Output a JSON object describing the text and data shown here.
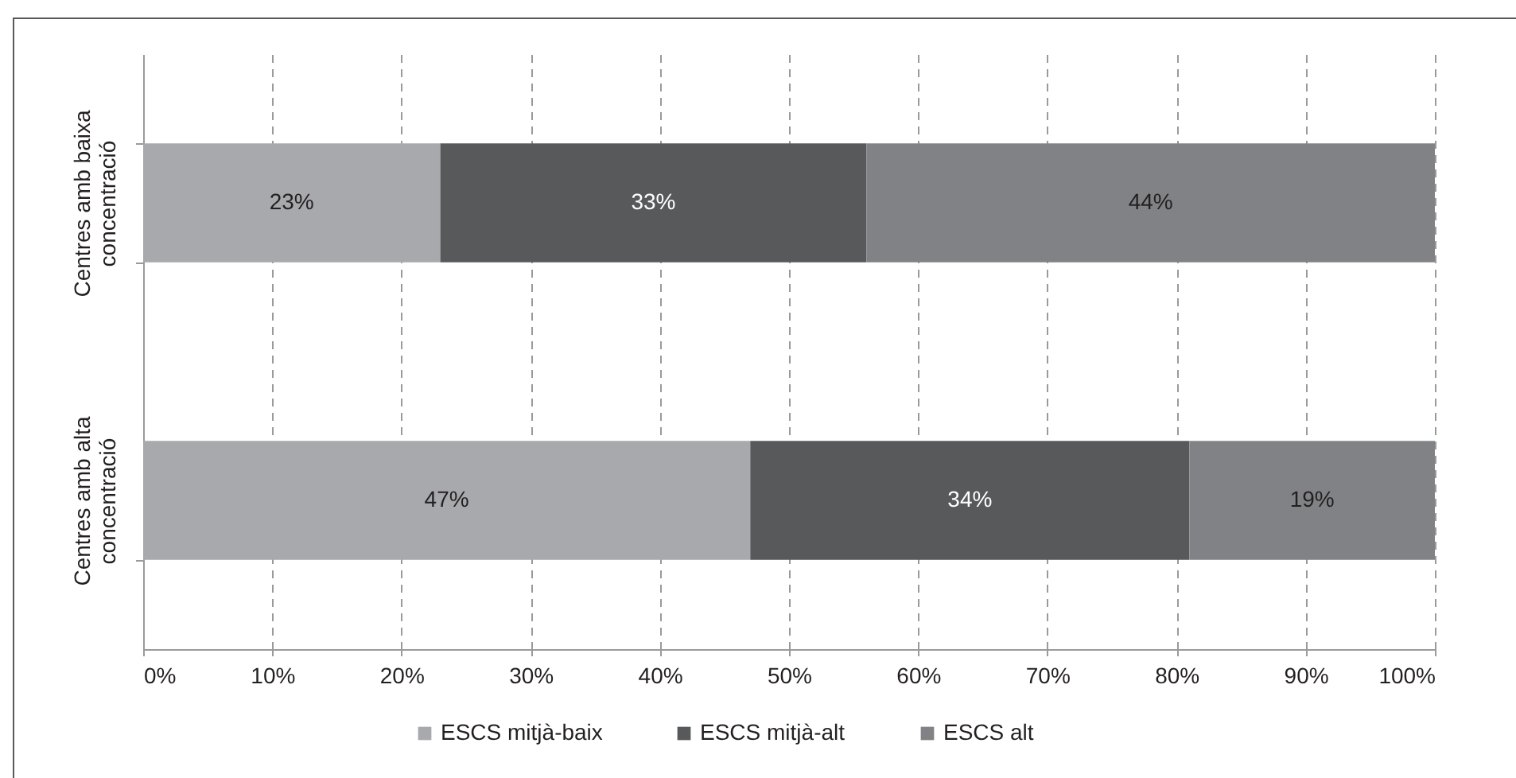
{
  "chart_data": {
    "type": "bar",
    "orientation": "horizontal",
    "stacked": true,
    "categories": [
      "Centres amb baixa concentració",
      "Centres amb alta concentració"
    ],
    "series": [
      {
        "name": "ESCS mitjà-baix",
        "color": "#a7a9ac",
        "values": [
          23,
          47
        ],
        "value_labels": [
          "23%",
          "47%"
        ]
      },
      {
        "name": "ESCS mitjà-alt",
        "color": "#58595b",
        "values": [
          33,
          34
        ],
        "value_labels": [
          "33%",
          "34%"
        ]
      },
      {
        "name": "ESCS alt",
        "color": "#808285",
        "values": [
          44,
          19
        ],
        "value_labels": [
          "44%",
          "19%"
        ]
      }
    ],
    "xlim": [
      0,
      100
    ],
    "xticks": [
      {
        "value": 0,
        "label": "0%"
      },
      {
        "value": 10,
        "label": "10%"
      },
      {
        "value": 20,
        "label": "20%"
      },
      {
        "value": 30,
        "label": "30%"
      },
      {
        "value": 40,
        "label": "40%"
      },
      {
        "value": 50,
        "label": "50%"
      },
      {
        "value": 60,
        "label": "60%"
      },
      {
        "value": 70,
        "label": "70%"
      },
      {
        "value": 80,
        "label": "80%"
      },
      {
        "value": 90,
        "label": "90%"
      },
      {
        "value": 100,
        "label": "100%"
      }
    ],
    "grid": "x",
    "legend": "bottom"
  }
}
